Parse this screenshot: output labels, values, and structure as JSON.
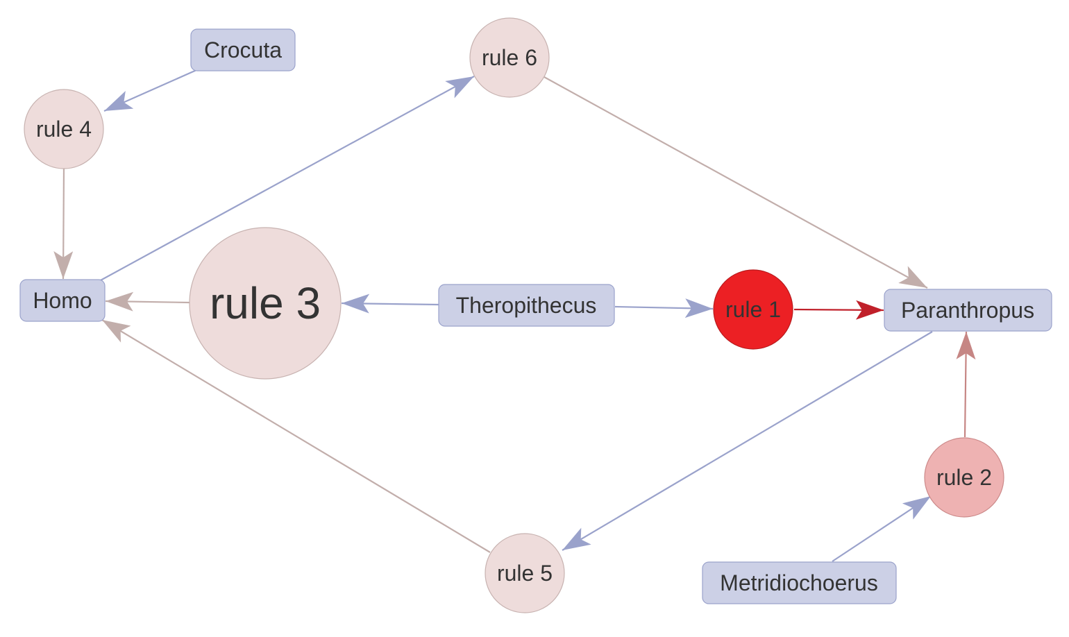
{
  "colors": {
    "background": "#ffffff",
    "rect_fill": "#ccd0e6",
    "rect_stroke": "#9aa2cb",
    "rule_fill_default": "#eedcdb",
    "rule_stroke_default": "#c7b2b0",
    "rule_2_fill": "#eeb2b2",
    "rule_2_stroke": "#cc8a8a",
    "rule_1_fill": "#ec2024",
    "rule_1_stroke": "#b81a1d",
    "edge_blue": "#9aa2cb",
    "edge_tan": "#c2aeab",
    "edge_red": "#c0202a",
    "edge_rose": "#c68684",
    "text": "#333333"
  },
  "nodes": {
    "crocuta": "Crocuta",
    "homo": "Homo",
    "theropithecus": "Theropithecus",
    "paranthropus": "Paranthropus",
    "metridiochoerus": "Metridiochoerus",
    "rule_1": "rule 1",
    "rule_2": "rule 2",
    "rule_3": "rule 3",
    "rule_4": "rule 4",
    "rule_5": "rule 5",
    "rule_6": "rule 6"
  },
  "edges": [
    {
      "from": "crocuta",
      "to": "rule_4",
      "color": "edge_blue"
    },
    {
      "from": "rule_4",
      "to": "homo",
      "color": "edge_tan"
    },
    {
      "from": "homo",
      "to": "rule_6",
      "color": "edge_blue"
    },
    {
      "from": "rule_6",
      "to": "paranthropus",
      "color": "edge_tan"
    },
    {
      "from": "rule_3",
      "to": "homo",
      "color": "edge_tan"
    },
    {
      "from": "theropithecus",
      "to": "rule_3",
      "color": "edge_blue"
    },
    {
      "from": "theropithecus",
      "to": "rule_1",
      "color": "edge_blue"
    },
    {
      "from": "rule_1",
      "to": "paranthropus",
      "color": "edge_red"
    },
    {
      "from": "paranthropus",
      "to": "rule_5",
      "color": "edge_blue"
    },
    {
      "from": "rule_5",
      "to": "homo",
      "color": "edge_tan"
    },
    {
      "from": "rule_2",
      "to": "paranthropus",
      "color": "edge_rose"
    },
    {
      "from": "metridiochoerus",
      "to": "rule_2",
      "color": "edge_blue"
    }
  ]
}
